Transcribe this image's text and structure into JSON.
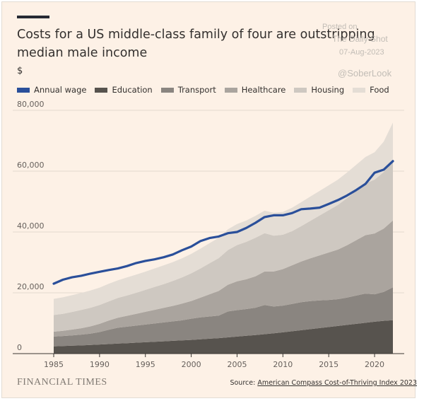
{
  "title": "Costs for a US middle-class family of four are outstripping median male income",
  "unit_label": "$",
  "watermark": {
    "posted_on": "Posted on",
    "site": "The Daily Shot",
    "date": "07-Aug-2023",
    "handle": "@SoberLook"
  },
  "footer": {
    "brand": "FINANCIAL TIMES",
    "source_prefix": "Source: ",
    "source_link": "American Compass Cost-of-Thriving Index 2023"
  },
  "colors": {
    "background": "#fdf1e6",
    "annual_wage": "#2a4f9a",
    "education": "#57534e",
    "transport": "#8a8580",
    "healthcare": "#aaa49e",
    "housing": "#cec8c1",
    "food": "#e4ddd5",
    "grid": "#e2d9cf",
    "axis": "#66605c"
  },
  "chart_data": {
    "type": "area",
    "title": "Costs for a US middle-class family of four are outstripping median male income",
    "ylabel": "$",
    "xlabel": "",
    "xlim": [
      1985,
      2022
    ],
    "ylim": [
      0,
      80000
    ],
    "x_ticks": [
      1985,
      1990,
      1995,
      2000,
      2005,
      2010,
      2015,
      2020
    ],
    "y_ticks": [
      0,
      20000,
      40000,
      60000,
      80000
    ],
    "grid": "horizontal",
    "legend_position": "top",
    "x": [
      1985,
      1986,
      1987,
      1988,
      1989,
      1990,
      1991,
      1992,
      1993,
      1994,
      1995,
      1996,
      1997,
      1998,
      1999,
      2000,
      2001,
      2002,
      2003,
      2004,
      2005,
      2006,
      2007,
      2008,
      2009,
      2010,
      2011,
      2012,
      2013,
      2014,
      2015,
      2016,
      2017,
      2018,
      2019,
      2020,
      2021,
      2022
    ],
    "stacked_series": [
      {
        "name": "Education",
        "values": [
          2400,
          2500,
          2600,
          2700,
          2850,
          3000,
          3150,
          3300,
          3450,
          3600,
          3750,
          3900,
          4050,
          4200,
          4350,
          4500,
          4700,
          4900,
          5100,
          5350,
          5600,
          5850,
          6100,
          6400,
          6700,
          7000,
          7350,
          7700,
          8050,
          8400,
          8750,
          9100,
          9450,
          9800,
          10150,
          10500,
          10800,
          11000
        ]
      },
      {
        "name": "Transport",
        "values": [
          3200,
          3300,
          3400,
          3550,
          3700,
          4100,
          4700,
          5200,
          5400,
          5600,
          5800,
          6000,
          6200,
          6400,
          6600,
          7000,
          7200,
          7300,
          7400,
          8500,
          8700,
          8800,
          9000,
          9600,
          8800,
          8800,
          9000,
          9200,
          9200,
          9100,
          8900,
          8800,
          9000,
          9300,
          9600,
          9000,
          9500,
          10800
        ]
      },
      {
        "name": "Healthcare",
        "values": [
          1600,
          1700,
          1900,
          2100,
          2400,
          2700,
          3000,
          3300,
          3600,
          3900,
          4200,
          4500,
          4800,
          5100,
          5500,
          5800,
          6500,
          7300,
          8100,
          8800,
          9500,
          9800,
          10300,
          11000,
          11500,
          12000,
          12700,
          13400,
          14100,
          14800,
          15600,
          16300,
          17200,
          18200,
          19200,
          20000,
          20800,
          22000
        ]
      },
      {
        "name": "Housing",
        "values": [
          5500,
          5600,
          5800,
          6000,
          6100,
          6200,
          6300,
          6500,
          6700,
          6900,
          7200,
          7500,
          7800,
          8200,
          8600,
          9100,
          9600,
          10200,
          10800,
          11400,
          11900,
          12300,
          12700,
          12600,
          11800,
          11300,
          11200,
          11600,
          12300,
          13100,
          13900,
          14700,
          15500,
          16300,
          17000,
          17700,
          18600,
          20000
        ]
      },
      {
        "name": "Food",
        "values": [
          5300,
          5400,
          5500,
          5600,
          5700,
          5700,
          5800,
          5800,
          5900,
          6000,
          6000,
          6100,
          6200,
          6200,
          6300,
          6400,
          6500,
          6600,
          6700,
          6800,
          6900,
          7000,
          7200,
          7400,
          7500,
          7500,
          7700,
          7900,
          8000,
          8100,
          8200,
          8300,
          8400,
          8500,
          8700,
          9000,
          10000,
          12200
        ]
      }
    ],
    "line_series": {
      "name": "Annual wage",
      "values": [
        23000,
        24300,
        25100,
        25600,
        26300,
        26900,
        27500,
        28000,
        28800,
        29800,
        30500,
        31000,
        31700,
        32600,
        34000,
        35200,
        37000,
        38000,
        38500,
        39600,
        40000,
        41300,
        43000,
        44900,
        45500,
        45500,
        46200,
        47500,
        47700,
        48000,
        49200,
        50500,
        52000,
        53800,
        55800,
        59500,
        60500,
        63300
      ]
    }
  }
}
